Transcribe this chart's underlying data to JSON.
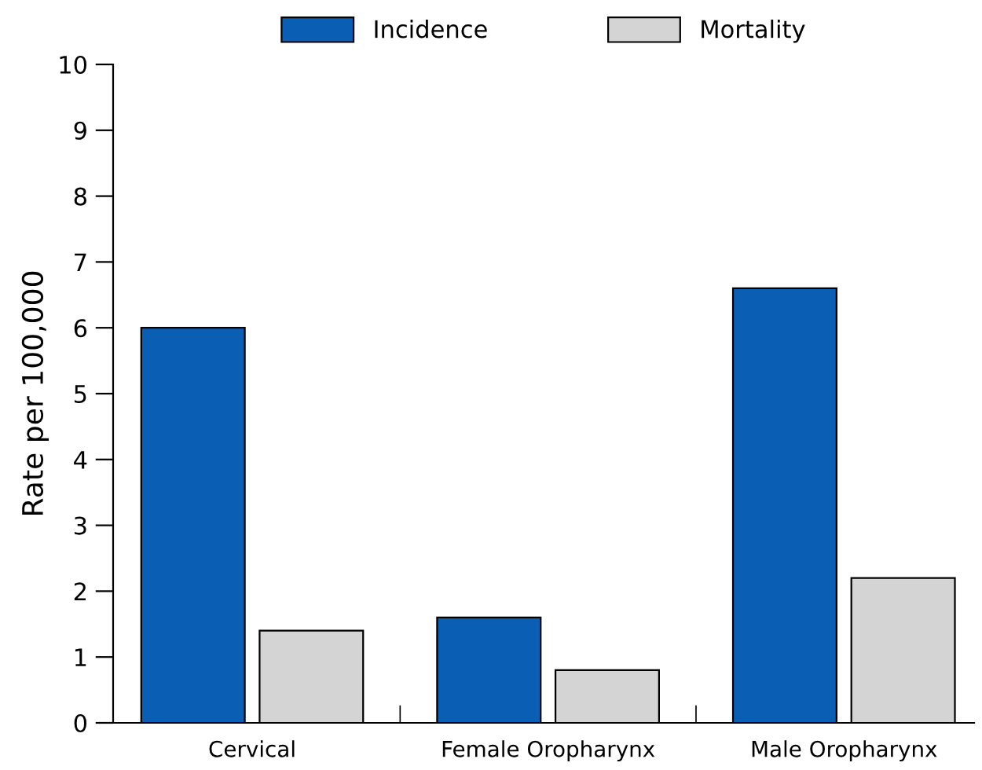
{
  "chart_data": {
    "type": "bar",
    "ylabel": "Rate per 100,000",
    "categories": [
      "Cervical",
      "Female Oropharynx",
      "Male Oropharynx"
    ],
    "series": [
      {
        "name": "Incidence",
        "color": "#0a5fb4",
        "values": [
          6.0,
          1.6,
          6.6
        ]
      },
      {
        "name": "Mortality",
        "color": "#d4d4d4",
        "values": [
          1.4,
          0.8,
          2.2
        ]
      }
    ],
    "ylim": [
      0,
      10
    ],
    "yticks": [
      0,
      1,
      2,
      3,
      4,
      5,
      6,
      7,
      8,
      9,
      10
    ],
    "grid": false,
    "legend": "top"
  }
}
